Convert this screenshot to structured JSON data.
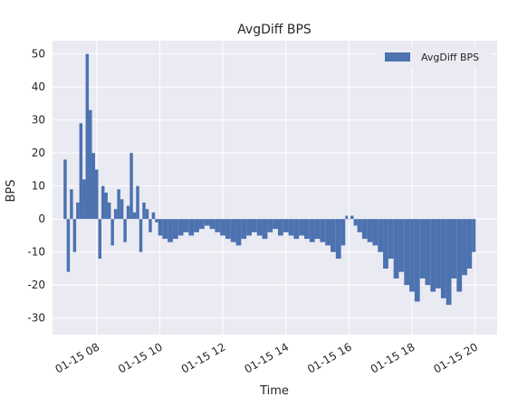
{
  "colors": {
    "plot_background": "#eaeaf2",
    "grid": "#ffffff",
    "bar": "#4c72b0",
    "text": "#262626"
  },
  "chart_data": {
    "type": "bar",
    "title": "AvgDiff BPS",
    "xlabel": "Time",
    "ylabel": "BPS",
    "legend": {
      "entries": [
        "AvgDiff BPS"
      ],
      "placement": "top-right"
    },
    "grid": true,
    "xlim": [
      "01-15 06:36",
      "01-15 20:42"
    ],
    "ylim": [
      -35,
      54
    ],
    "x_ticks": [
      "01-15 08",
      "01-15 10",
      "01-15 12",
      "01-15 14",
      "01-15 16",
      "01-15 18",
      "01-15 20"
    ],
    "y_ticks": [
      -30,
      -20,
      -10,
      0,
      10,
      20,
      30,
      40,
      50
    ],
    "series": [
      {
        "name": "AvgDiff BPS",
        "x": [
          "07:00",
          "07:06",
          "07:12",
          "07:18",
          "07:24",
          "07:30",
          "07:36",
          "07:42",
          "07:48",
          "07:54",
          "08:00",
          "08:06",
          "08:12",
          "08:18",
          "08:24",
          "08:30",
          "08:36",
          "08:42",
          "08:48",
          "08:54",
          "09:00",
          "09:06",
          "09:12",
          "09:18",
          "09:24",
          "09:30",
          "09:36",
          "09:42",
          "09:48",
          "09:54",
          "10:00",
          "10:10",
          "10:20",
          "10:30",
          "10:40",
          "10:50",
          "11:00",
          "11:10",
          "11:20",
          "11:30",
          "11:40",
          "11:50",
          "12:00",
          "12:10",
          "12:20",
          "12:30",
          "12:40",
          "12:50",
          "13:00",
          "13:10",
          "13:20",
          "13:30",
          "13:40",
          "13:50",
          "14:00",
          "14:10",
          "14:20",
          "14:30",
          "14:40",
          "14:50",
          "15:00",
          "15:10",
          "15:20",
          "15:30",
          "15:40",
          "15:50",
          "15:56",
          "16:00",
          "16:06",
          "16:12",
          "16:20",
          "16:30",
          "16:40",
          "16:50",
          "17:00",
          "17:10",
          "17:20",
          "17:30",
          "17:40",
          "17:50",
          "18:00",
          "18:10",
          "18:20",
          "18:30",
          "18:40",
          "18:50",
          "19:00",
          "19:10",
          "19:20",
          "19:30",
          "19:40",
          "19:50",
          "19:58"
        ],
        "values": [
          18,
          -16,
          9,
          -10,
          5,
          29,
          12,
          50,
          33,
          20,
          15,
          -12,
          10,
          8,
          5,
          -8,
          3,
          9,
          6,
          -7,
          4,
          20,
          2,
          10,
          -10,
          5,
          3,
          -4,
          2,
          -1,
          -5,
          -6,
          -7,
          -6,
          -5,
          -4,
          -5,
          -4,
          -3,
          -2,
          -3,
          -4,
          -5,
          -6,
          -7,
          -8,
          -6,
          -5,
          -4,
          -5,
          -6,
          -4,
          -3,
          -5,
          -4,
          -5,
          -6,
          -5,
          -6,
          -7,
          -6,
          -7,
          -8,
          -10,
          -12,
          -8,
          1,
          0,
          1,
          -2,
          -4,
          -6,
          -7,
          -8,
          -10,
          -15,
          -12,
          -18,
          -16,
          -20,
          -22,
          -25,
          -18,
          -20,
          -22,
          -21,
          -24,
          -26,
          -18,
          -22,
          -17,
          -15,
          -10
        ]
      }
    ]
  }
}
